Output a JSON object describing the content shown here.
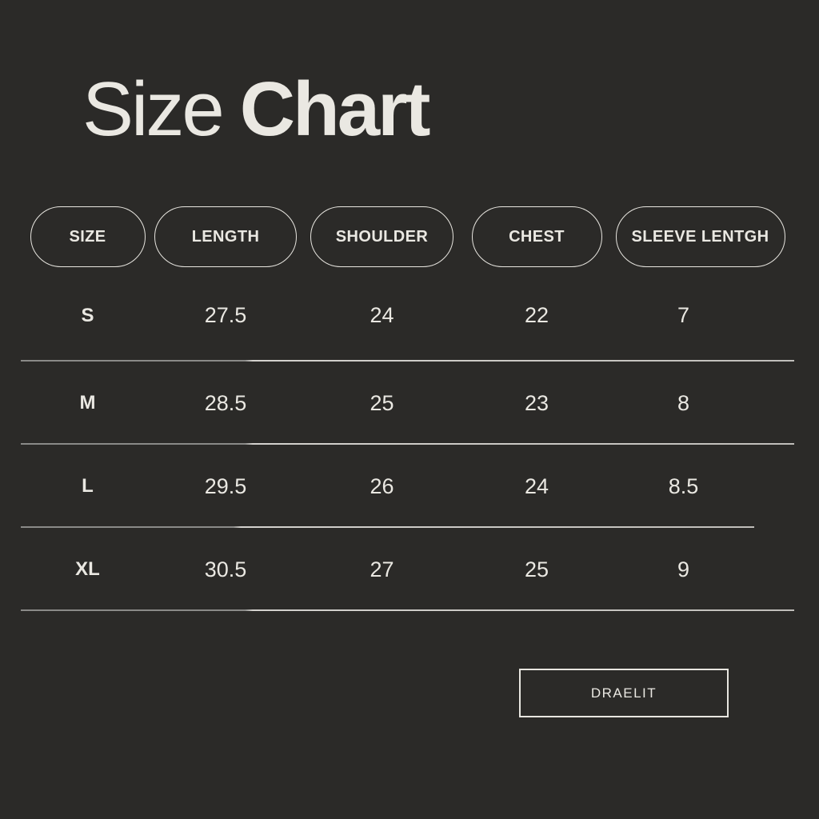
{
  "title": {
    "word_regular": "Size",
    "word_bold": "Chart"
  },
  "colors": {
    "background": "#2b2a28",
    "text": "#eae8e2",
    "pill_border": "#e8e6e0",
    "divider_left": "#8a8a88",
    "divider_right": "#c0beba"
  },
  "size_chart": {
    "headers": [
      "SIZE",
      "LENGTH",
      "SHOULDER",
      "CHEST",
      "SLEEVE LENTGH"
    ],
    "rows": [
      {
        "size": "S",
        "values": [
          "27.5",
          "24",
          "22",
          "7"
        ]
      },
      {
        "size": "M",
        "values": [
          "28.5",
          "25",
          "23",
          "8"
        ]
      },
      {
        "size": "L",
        "values": [
          "29.5",
          "26",
          "24",
          "8.5"
        ]
      },
      {
        "size": "XL",
        "values": [
          "30.5",
          "27",
          "25",
          "9"
        ]
      }
    ]
  },
  "brand": {
    "label": "DRAELIT"
  },
  "chart_data": {
    "type": "table",
    "title": "Size Chart",
    "columns": [
      "SIZE",
      "LENGTH",
      "SHOULDER",
      "CHEST",
      "SLEEVE LENTGH"
    ],
    "rows": [
      [
        "S",
        27.5,
        24,
        22,
        7
      ],
      [
        "M",
        28.5,
        25,
        23,
        8
      ],
      [
        "L",
        29.5,
        26,
        24,
        8.5
      ],
      [
        "XL",
        30.5,
        27,
        25,
        9
      ]
    ]
  }
}
